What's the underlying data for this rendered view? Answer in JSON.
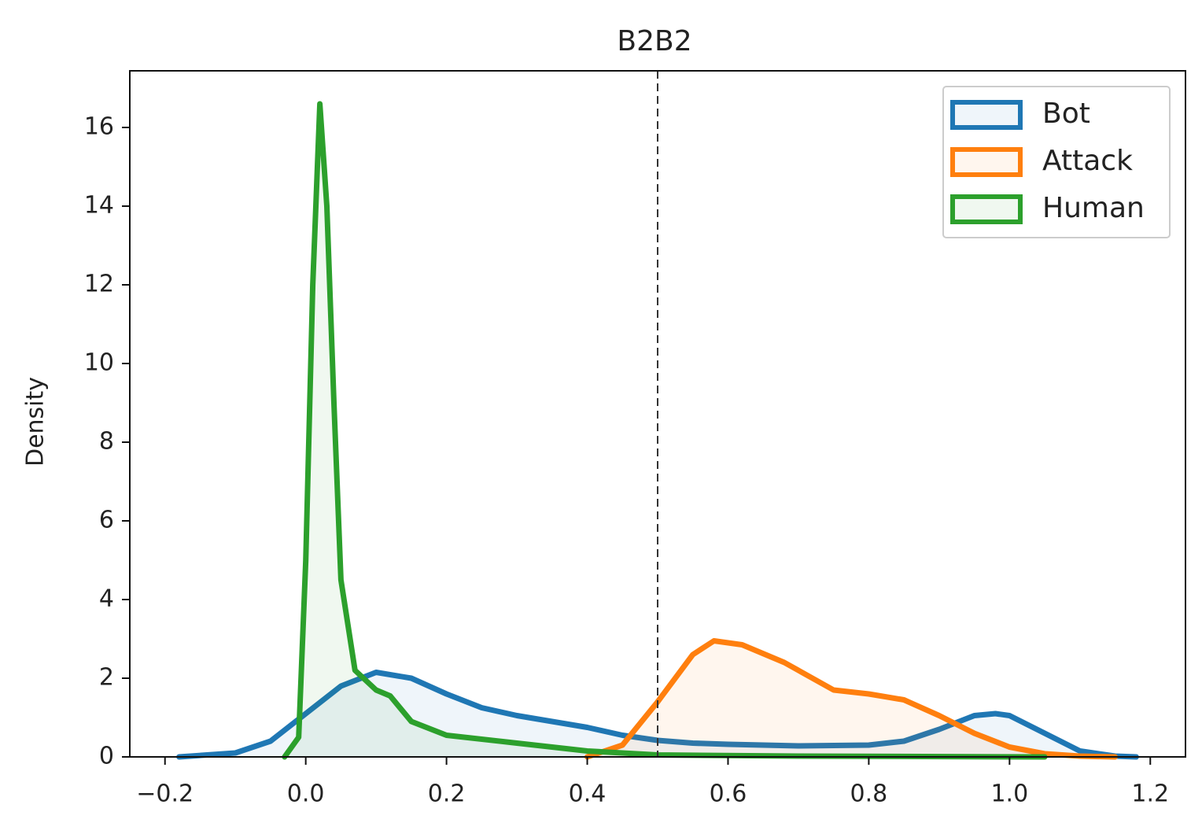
{
  "chart_data": {
    "type": "kde",
    "title": "B2B2",
    "y_label": "Density",
    "xlim": [
      -0.25,
      1.25
    ],
    "ylim": [
      0,
      17.44
    ],
    "xticks": [
      {
        "value": -0.2,
        "label": "−0.2"
      },
      {
        "value": 0,
        "label": "0.0"
      },
      0.2,
      0.4,
      0.6,
      0.8,
      {
        "value": 1,
        "label": "1.0"
      },
      1.2
    ],
    "yticks": [
      0,
      2,
      4,
      6,
      8,
      10,
      12,
      14,
      16
    ],
    "vline": 0.5,
    "legend": "upper right",
    "series": [
      {
        "name": "Bot",
        "color": "#1f77b4",
        "x": [
          -0.18,
          -0.1,
          -0.05,
          0,
          0.05,
          0.1,
          0.15,
          0.2,
          0.25,
          0.3,
          0.35,
          0.4,
          0.45,
          0.5,
          0.55,
          0.6,
          0.7,
          0.8,
          0.85,
          0.9,
          0.95,
          0.98,
          1.0,
          1.05,
          1.1,
          1.15,
          1.18
        ],
        "values": [
          0,
          0.1,
          0.4,
          1.1,
          1.8,
          2.15,
          2.0,
          1.6,
          1.25,
          1.05,
          0.9,
          0.75,
          0.55,
          0.42,
          0.35,
          0.32,
          0.28,
          0.3,
          0.4,
          0.7,
          1.05,
          1.1,
          1.05,
          0.6,
          0.15,
          0.02,
          0
        ]
      },
      {
        "name": "Attack",
        "color": "#ff7f0e",
        "x": [
          0.4,
          0.45,
          0.5,
          0.55,
          0.58,
          0.62,
          0.68,
          0.75,
          0.8,
          0.85,
          0.9,
          0.95,
          1.0,
          1.05,
          1.1,
          1.15
        ],
        "values": [
          0,
          0.3,
          1.4,
          2.6,
          2.95,
          2.85,
          2.4,
          1.7,
          1.6,
          1.45,
          1.05,
          0.6,
          0.25,
          0.08,
          0.02,
          0
        ]
      },
      {
        "name": "Human",
        "color": "#2ca02c",
        "x": [
          -0.03,
          -0.01,
          0,
          0.01,
          0.02,
          0.03,
          0.04,
          0.05,
          0.07,
          0.1,
          0.12,
          0.15,
          0.2,
          0.3,
          0.4,
          0.5,
          0.7,
          1.05
        ],
        "values": [
          0,
          0.5,
          5,
          12,
          16.6,
          14,
          9,
          4.5,
          2.2,
          1.7,
          1.55,
          0.9,
          0.55,
          0.35,
          0.15,
          0.05,
          0.02,
          0
        ]
      }
    ]
  }
}
